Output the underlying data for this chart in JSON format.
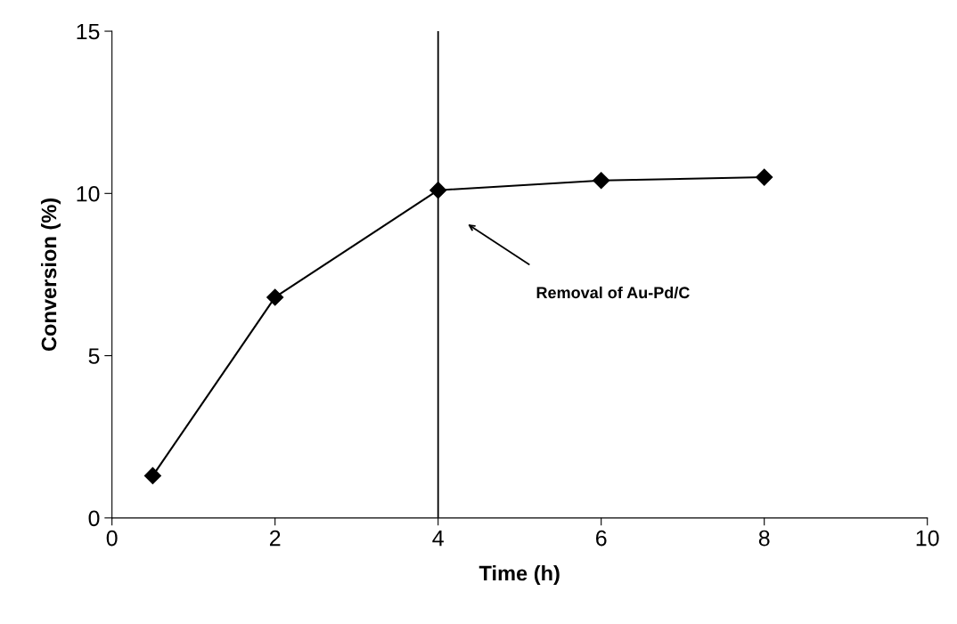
{
  "chart_data": {
    "type": "line",
    "xlabel": "Time (h)",
    "ylabel": "Conversion (%)",
    "x": [
      0.5,
      2,
      4,
      6,
      8
    ],
    "series": [
      {
        "color": "#000000",
        "values": [
          1.3,
          6.8,
          10.1,
          10.4,
          10.5
        ]
      }
    ],
    "xlim": [
      0,
      10
    ],
    "xticks": [
      0,
      2,
      4,
      6,
      8,
      10
    ],
    "ylim": [
      0,
      15
    ],
    "yticks": [
      0,
      5,
      10,
      15
    ],
    "marker": "diamond",
    "line_style": "solid",
    "grid": false,
    "legend": false,
    "ref_lines": [
      {
        "axis": "x",
        "value": 4,
        "color": "#000000",
        "line_style": "solid"
      }
    ],
    "annotations": [
      "Removal of Au-Pd/C"
    ]
  }
}
